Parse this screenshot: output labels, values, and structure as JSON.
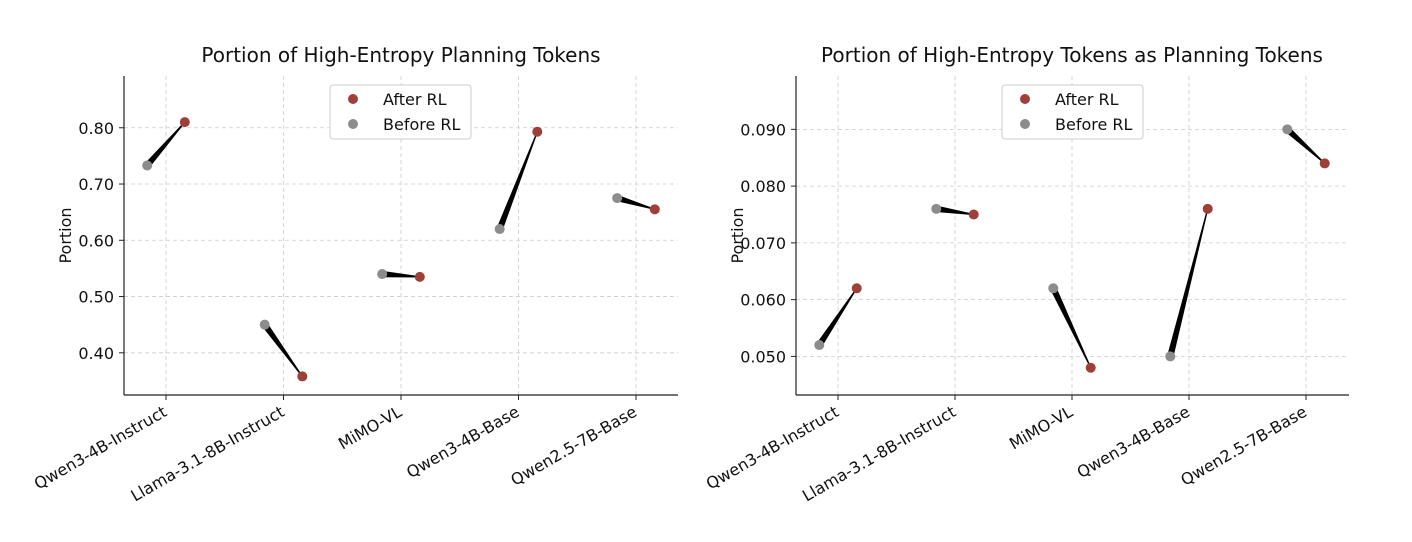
{
  "colors": {
    "after": "#9e3f3a",
    "before": "#8c8c8c",
    "connector": "#000000",
    "grid": "#cccccc"
  },
  "chart_data": [
    {
      "type": "scatter",
      "title": "Portion of High-Entropy Planning Tokens",
      "ylabel": "Portion",
      "categories": [
        "Qwen3-4B-Instruct",
        "Llama-3.1-8B-Instruct",
        "MiMO-VL",
        "Qwen3-4B-Base",
        "Qwen2.5-7B-Base"
      ],
      "ylim": [
        0.325,
        0.892
      ],
      "yticks": [
        0.4,
        0.5,
        0.6,
        0.7,
        0.8
      ],
      "ytick_labels": [
        "0.40",
        "0.50",
        "0.60",
        "0.70",
        "0.80"
      ],
      "grid": true,
      "legend": "top-center",
      "series": [
        {
          "name": "After RL",
          "values": [
            0.81,
            0.358,
            0.535,
            0.793,
            0.655
          ]
        },
        {
          "name": "Before RL",
          "values": [
            0.733,
            0.45,
            0.54,
            0.62,
            0.675
          ]
        }
      ]
    },
    {
      "type": "scatter",
      "title": "Portion of High-Entropy Tokens as Planning Tokens",
      "ylabel": "Portion",
      "categories": [
        "Qwen3-4B-Instruct",
        "Llama-3.1-8B-Instruct",
        "MiMO-VL",
        "Qwen3-4B-Base",
        "Qwen2.5-7B-Base"
      ],
      "ylim": [
        0.0432,
        0.0994
      ],
      "yticks": [
        0.05,
        0.06,
        0.07,
        0.08,
        0.09
      ],
      "ytick_labels": [
        "0.050",
        "0.060",
        "0.070",
        "0.080",
        "0.090"
      ],
      "grid": true,
      "legend": "top-center",
      "series": [
        {
          "name": "After RL",
          "values": [
            0.062,
            0.075,
            0.048,
            0.076,
            0.084
          ]
        },
        {
          "name": "Before RL",
          "values": [
            0.052,
            0.076,
            0.062,
            0.05,
            0.09
          ]
        }
      ]
    }
  ]
}
